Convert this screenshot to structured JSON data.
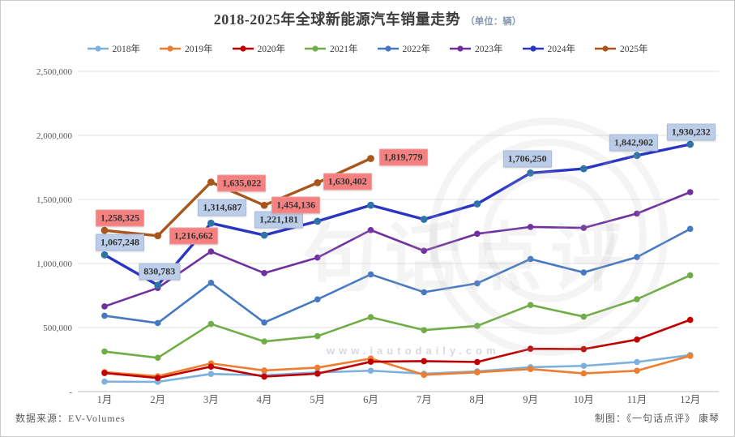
{
  "watermark": {
    "seal_text": "句话点评",
    "url_text": "www.iautodaily.com"
  },
  "footer": {
    "source": "数据来源：EV-Volumes",
    "credit": "制图：《一句话点评》 康琴"
  },
  "chart_data": {
    "type": "line",
    "title": "2018-2025年全球新能源汽车销量走势",
    "title_unit": "（单位：辆）",
    "xlabel": "",
    "ylabel": "",
    "ylim": [
      0,
      2500000
    ],
    "grid": true,
    "legend_position": "top",
    "x_categories": [
      "1月",
      "2月",
      "3月",
      "4月",
      "5月",
      "6月",
      "7月",
      "8月",
      "9月",
      "10月",
      "11月",
      "12月"
    ],
    "y_ticks": [
      {
        "label": "2,500,000",
        "value": 2500000
      },
      {
        "label": "2,000,000",
        "value": 2000000
      },
      {
        "label": "1,500,000",
        "value": 1500000
      },
      {
        "label": "1,000,000",
        "value": 1000000
      },
      {
        "label": "500,000",
        "value": 500000
      },
      {
        "label": "-",
        "value": 0
      }
    ],
    "label_styles": {
      "blue": {
        "bg": "#BCCDE9",
        "border": "#a9bcd9"
      },
      "pink": {
        "bg": "#F58080",
        "border": "#eda0a0"
      }
    },
    "series": [
      {
        "name": "2018年",
        "color": "#7EB0DC",
        "values": [
          78000,
          76000,
          138000,
          127000,
          150000,
          163000,
          140000,
          158000,
          190000,
          201000,
          231000,
          285000
        ]
      },
      {
        "name": "2019年",
        "color": "#ED7D31",
        "values": [
          152000,
          120000,
          220000,
          165000,
          187000,
          258000,
          131000,
          151000,
          176000,
          142000,
          163000,
          279000
        ]
      },
      {
        "name": "2020年",
        "color": "#C00000",
        "values": [
          145000,
          106000,
          195000,
          117000,
          140000,
          233000,
          238000,
          231000,
          334000,
          332000,
          406000,
          560000
        ]
      },
      {
        "name": "2021年",
        "color": "#70AD47",
        "values": [
          313000,
          264000,
          528000,
          391000,
          433000,
          581000,
          480000,
          513000,
          676000,
          585000,
          721000,
          908000
        ]
      },
      {
        "name": "2022年",
        "color": "#4778C2",
        "values": [
          592000,
          535000,
          849000,
          539000,
          720000,
          915000,
          776000,
          845000,
          1035000,
          930000,
          1050000,
          1270000
        ]
      },
      {
        "name": "2023年",
        "color": "#7030A0",
        "values": [
          665000,
          809000,
          1094000,
          925000,
          1046000,
          1261000,
          1099000,
          1232000,
          1285000,
          1278000,
          1390000,
          1557000
        ]
      },
      {
        "name": "2024年",
        "color": "#2B35C4",
        "marker_color": "#2E74A6",
        "values": [
          1067248,
          830783,
          1314687,
          1221181,
          1330000,
          1455000,
          1345000,
          1465000,
          1706250,
          1740000,
          1842902,
          1930232
        ],
        "label_style": "blue",
        "point_labels": [
          {
            "i": 0,
            "text": "1,067,248",
            "dx": 19,
            "dy": -15
          },
          {
            "i": 1,
            "text": "830,783",
            "dx": 2,
            "dy": -17
          },
          {
            "i": 2,
            "text": "1,314,687",
            "dx": 14,
            "dy": -19
          },
          {
            "i": 3,
            "text": "1,221,181",
            "dx": 18,
            "dy": -19
          },
          {
            "i": 8,
            "text": "1,706,250",
            "dx": -4,
            "dy": -17
          },
          {
            "i": 10,
            "text": "1,842,902",
            "dx": -4,
            "dy": -16
          },
          {
            "i": 11,
            "text": "1,930,232",
            "dx": 1,
            "dy": -15
          }
        ]
      },
      {
        "name": "2025年",
        "color": "#A9561D",
        "values": [
          1258325,
          1216662,
          1635022,
          1454136,
          1630402,
          1819779,
          null,
          null,
          null,
          null,
          null,
          null
        ],
        "label_style": "pink",
        "point_labels": [
          {
            "i": 0,
            "text": "1,258,325",
            "dx": 19,
            "dy": -15
          },
          {
            "i": 1,
            "text": "1,216,662",
            "dx": 44,
            "dy": 0
          },
          {
            "i": 2,
            "text": "1,635,022",
            "dx": 38,
            "dy": 1
          },
          {
            "i": 3,
            "text": "1,454,136",
            "dx": 39,
            "dy": 0
          },
          {
            "i": 4,
            "text": "1,630,402",
            "dx": 37,
            "dy": -1
          },
          {
            "i": 5,
            "text": "1,819,779",
            "dx": 40,
            "dy": -1
          }
        ]
      }
    ]
  }
}
